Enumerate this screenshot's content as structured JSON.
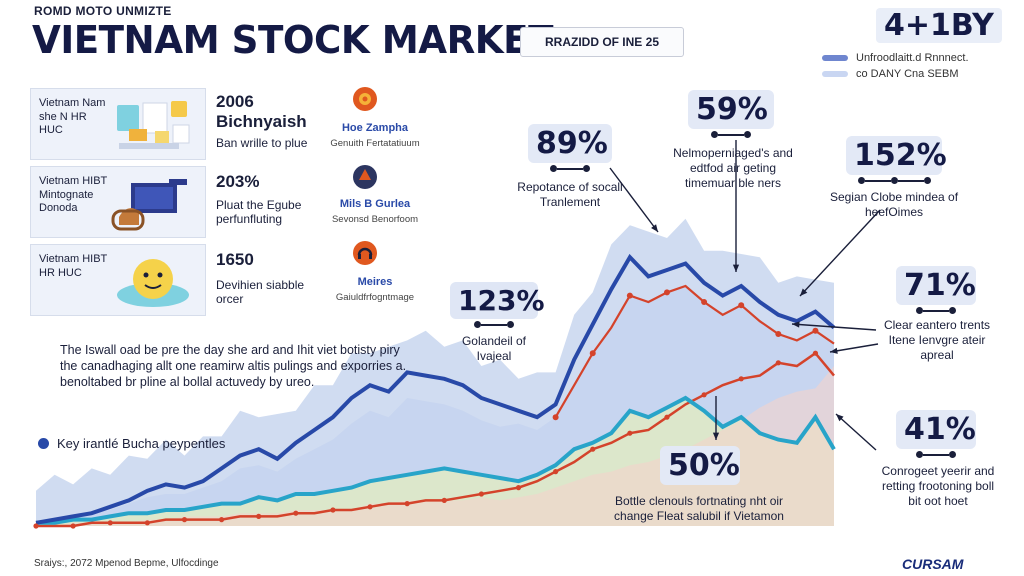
{
  "header": {
    "eyebrow": "ROMD MOTO UNMIZTE",
    "title": "VIETNAM STOCK MARKET",
    "date_badge": "RRAZIDD OF INE 25",
    "top_stat": "4+1BY"
  },
  "legend": [
    {
      "label": "Unfroodlaitt.d Rnnnect.",
      "color": "#6f86cf"
    },
    {
      "label": "co DANY Cna SEBM",
      "color": "#c9d6f2"
    }
  ],
  "rows": [
    {
      "card_label": "Vietnam Nam she N HR HUC",
      "value": "2006 Bichnyaish",
      "desc": "Ban wrille to plue",
      "name": "Hoe Zampha",
      "sub": "Genuith Fertatatiuum",
      "icon": "gear-icon",
      "icon_color": "#e0581f"
    },
    {
      "card_label": "Vietnam HIBT Mintognate Donoda",
      "value": "203%",
      "desc": "Pluat the Egube perfunfluting",
      "name": "Mils B Gurlea",
      "sub": "Sevonsd Benorfoom",
      "icon": "dial-icon",
      "icon_color": "#2c3560"
    },
    {
      "card_label": "Vietnam HIBT HR HUC",
      "value": "1650",
      "desc": "Devihien siabble orcer",
      "name": "Meires",
      "sub": "Gaiuldfrfogntmage",
      "icon": "headset-icon",
      "icon_color": "#e0581f"
    }
  ],
  "paragraph": "The Iswall oad be pre the day she ard and Ihit viet botisty piry the canadhaging allt one reamirw altis pulings and exporries a. benoltabed br pline al bollal actuvedy by ureo.",
  "key_label": "Key irantlé Bucha peypentles",
  "source": "Sraiys:, 2072 Mpenod Bepme, Ulfocdinge",
  "brand": "CURSAM",
  "callouts": [
    {
      "value": "89%",
      "text": "Repotance of socall Tranlement"
    },
    {
      "value": "59%",
      "text": "Nelmoperniaged's and edtfod air geting timemuar ble ners"
    },
    {
      "value": "152%",
      "text": "Segian Clobe mindea of heefOimes"
    },
    {
      "value": "71%",
      "text": "Clear eantero trents Itene Ienvgre ateir apreal"
    },
    {
      "value": "41%",
      "text": "Conrogeet yeerir and retting frootoning boll bit oot hoet"
    },
    {
      "value": "50%",
      "text": "Bottle clenouls fortnating nht oir change Fleat salubil if Vietamon"
    },
    {
      "value": "123%",
      "text": "Golandeil of Ivajeal"
    }
  ],
  "chart_data": {
    "type": "area",
    "xlim": [
      0,
      43
    ],
    "ylim": [
      0,
      100
    ],
    "x": [
      0,
      1,
      2,
      3,
      4,
      5,
      6,
      7,
      8,
      9,
      10,
      11,
      12,
      13,
      14,
      15,
      16,
      17,
      18,
      19,
      20,
      21,
      22,
      23,
      24,
      25,
      26,
      27,
      28,
      29,
      30,
      31,
      32,
      33,
      34,
      35,
      36,
      37,
      38,
      39,
      40,
      41,
      42,
      43
    ],
    "series": [
      {
        "values": [
          1,
          2,
          3,
          4,
          6,
          8,
          11,
          13,
          12,
          14,
          18,
          22,
          24,
          21,
          26,
          30,
          34,
          40,
          44,
          42,
          48,
          47,
          46,
          44,
          40,
          38,
          36,
          34,
          38,
          52,
          63,
          74,
          84,
          78,
          80,
          82,
          76,
          72,
          75,
          70,
          66,
          64,
          67,
          62
        ]
      },
      {
        "values": [
          1,
          2,
          3,
          4,
          5,
          7,
          9,
          10,
          10,
          12,
          14,
          18,
          19,
          17,
          21,
          24,
          27,
          32,
          36,
          34,
          40,
          39,
          38,
          36,
          33,
          31,
          32,
          30,
          34,
          44,
          54,
          62,
          72,
          70,
          73,
          75,
          70,
          66,
          69,
          64,
          60,
          58,
          61,
          57
        ]
      },
      {
        "values": [
          1,
          1,
          2,
          2,
          3,
          4,
          4,
          5,
          5,
          6,
          7,
          7,
          9,
          8,
          10,
          10,
          11,
          12,
          14,
          15,
          16,
          17,
          18,
          17,
          16,
          15,
          14,
          16,
          19,
          24,
          26,
          29,
          36,
          34,
          37,
          40,
          36,
          31,
          34,
          29,
          27,
          26,
          34,
          24
        ]
      },
      {
        "values": [
          0,
          0,
          1,
          1,
          1,
          1,
          2,
          2,
          3,
          3,
          3,
          4,
          4,
          4,
          5,
          5,
          5,
          5,
          7,
          7,
          8,
          8,
          8,
          8,
          9,
          8,
          9,
          10,
          12,
          14,
          16,
          17,
          19,
          20,
          22,
          24,
          27,
          30,
          33,
          37,
          40,
          42,
          43,
          50
        ]
      },
      {
        "values": [
          0,
          0,
          0,
          1,
          1,
          1,
          1,
          2,
          2,
          2,
          2,
          3,
          3,
          3,
          4,
          4,
          5,
          5,
          6,
          7,
          7,
          8,
          8,
          9,
          10,
          11,
          12,
          14,
          17,
          20,
          24,
          26,
          29,
          30,
          34,
          38,
          41,
          44,
          46,
          47,
          51,
          50,
          54,
          47
        ]
      }
    ]
  },
  "colors": {
    "navy_line": "#2849a8",
    "teal_line": "#28a4c9",
    "red_line": "#d4432b",
    "area_back": "#aac0e6",
    "area_mid": "#c5d4f0",
    "area_green": "#dfeac4",
    "area_pink": "#f4d4cc"
  }
}
